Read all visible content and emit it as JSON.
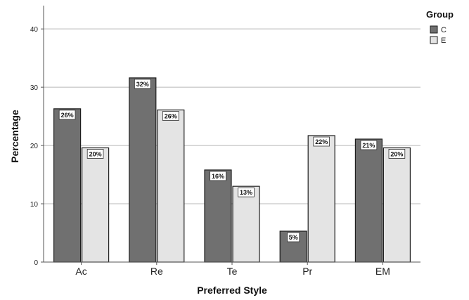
{
  "chart_data": {
    "type": "bar",
    "categories": [
      "Ac",
      "Re",
      "Te",
      "Pr",
      "EM"
    ],
    "series": [
      {
        "name": "C",
        "values": [
          26.3,
          31.6,
          15.8,
          5.3,
          21.1
        ],
        "labels": [
          "26%",
          "32%",
          "16%",
          "5%",
          "21%"
        ],
        "color": "#707070"
      },
      {
        "name": "E",
        "values": [
          19.6,
          26.1,
          13.0,
          21.7,
          19.6
        ],
        "labels": [
          "20%",
          "26%",
          "13%",
          "22%",
          "20%"
        ],
        "color": "#e4e4e4"
      }
    ],
    "title": "",
    "xlabel": "Preferred Style",
    "ylabel": "Percentage",
    "ylim": [
      0,
      44
    ],
    "yticks": [
      0,
      10,
      20,
      30,
      40
    ],
    "grid": true,
    "legend": {
      "title": "Group",
      "position": "top-right"
    }
  }
}
